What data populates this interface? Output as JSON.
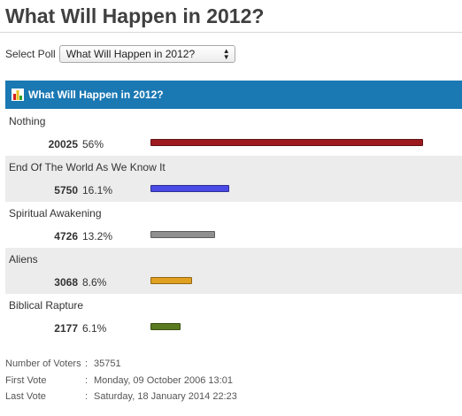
{
  "page": {
    "title": "What Will Happen in 2012?"
  },
  "poll_selector": {
    "label": "Select Poll",
    "selected": "What Will Happen in 2012?"
  },
  "poll": {
    "header_title": "What Will Happen in 2012?",
    "header_icon": "bar-chart-icon",
    "options": [
      {
        "label": "Nothing",
        "votes": "20025",
        "percent": "56%",
        "fraction": 0.56,
        "color": "#9b1b1f"
      },
      {
        "label": "End Of The World As We Know It",
        "votes": "5750",
        "percent": "16.1%",
        "fraction": 0.161,
        "color": "#4a4ae6"
      },
      {
        "label": "Spiritual Awakening",
        "votes": "4726",
        "percent": "13.2%",
        "fraction": 0.132,
        "color": "#8f8f8f"
      },
      {
        "label": "Aliens",
        "votes": "3068",
        "percent": "8.6%",
        "fraction": 0.086,
        "color": "#e0a020"
      },
      {
        "label": "Biblical Rapture",
        "votes": "2177",
        "percent": "6.1%",
        "fraction": 0.061,
        "color": "#5a7a20"
      }
    ]
  },
  "stats": {
    "voters_label": "Number of Voters",
    "voters_value": "35751",
    "first_label": "First Vote",
    "first_value": "Monday, 09 October 2006 13:01",
    "last_label": "Last Vote",
    "last_value": "Saturday, 18 January 2014 22:23"
  }
}
